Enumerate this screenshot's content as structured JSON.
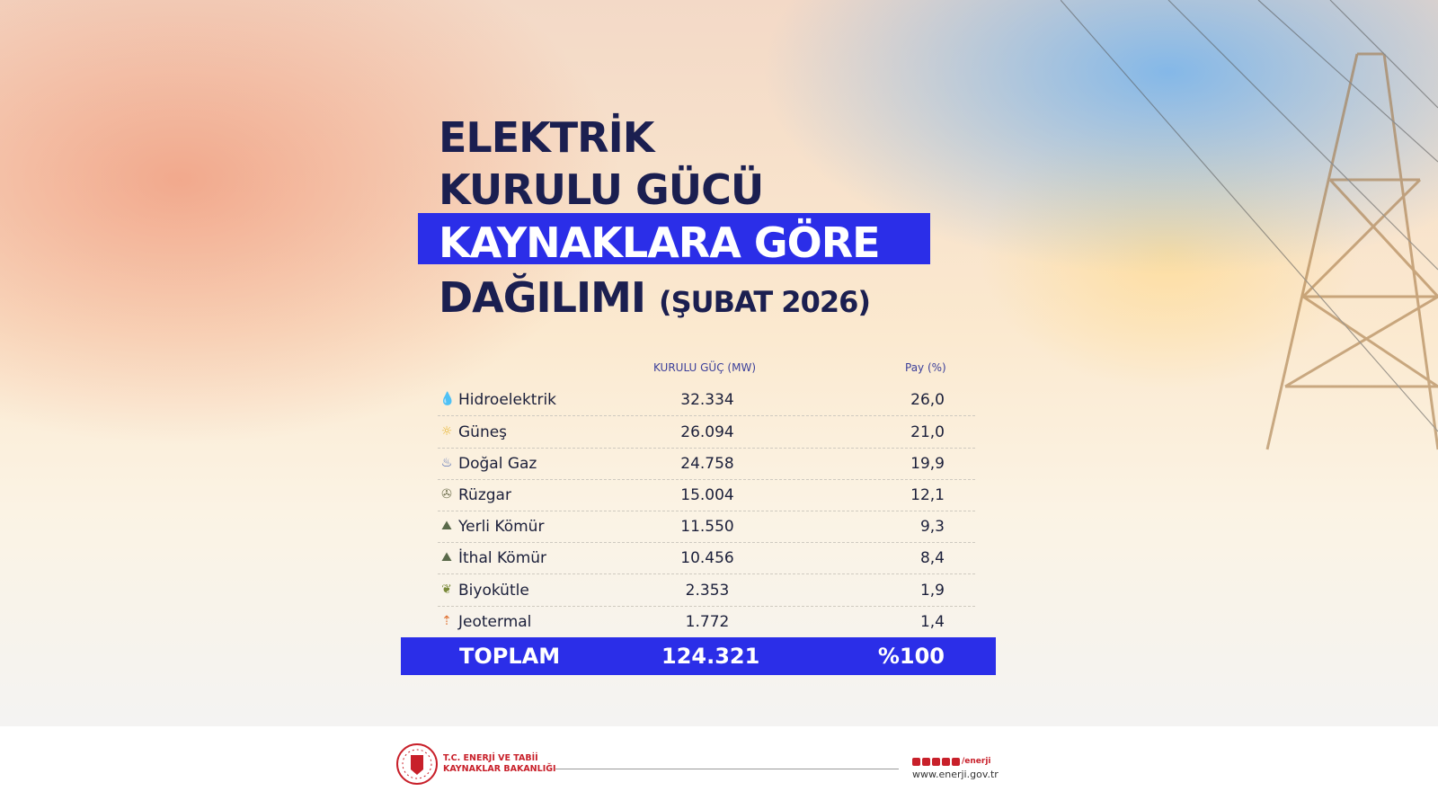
{
  "title": {
    "line1": "ELEKTRİK",
    "line2": "KURULU GÜCÜ",
    "line3": "KAYNAKLARA GÖRE",
    "line4": "DAĞILIMI",
    "period": "(ŞUBAT 2026)"
  },
  "colors": {
    "accent": "#2b2ee8",
    "title": "#1b1f50"
  },
  "table": {
    "headers": {
      "mw": "KURULU GÜÇ (MW)",
      "share": "Pay (%)"
    },
    "rows": [
      {
        "name": "Hidroelektrik",
        "mw": "32.334",
        "share": "26,0",
        "icon": "water-drop-icon",
        "color": "#3aa9c9"
      },
      {
        "name": "Güneş",
        "mw": "26.094",
        "share": "21,0",
        "icon": "sun-icon",
        "color": "#e8b530"
      },
      {
        "name": "Doğal Gaz",
        "mw": "24.758",
        "share": "19,9",
        "icon": "gas-flame-icon",
        "color": "#3d5bb0"
      },
      {
        "name": "Rüzgar",
        "mw": "15.004",
        "share": "12,1",
        "icon": "wind-turbine-icon",
        "color": "#7a7a5a"
      },
      {
        "name": "Yerli Kömür",
        "mw": "11.550",
        "share": "9,3",
        "icon": "coal-icon",
        "color": "#5a6a4a"
      },
      {
        "name": "İthal Kömür",
        "mw": "10.456",
        "share": "8,4",
        "icon": "coal-icon",
        "color": "#5a6a4a"
      },
      {
        "name": "Biyokütle",
        "mw": "2.353",
        "share": "1,9",
        "icon": "biomass-icon",
        "color": "#7a8a3a"
      },
      {
        "name": "Jeotermal",
        "mw": "1.772",
        "share": "1,4",
        "icon": "geothermal-icon",
        "color": "#e07030"
      }
    ],
    "total": {
      "label": "TOPLAM",
      "mw": "124.321",
      "share": "%100"
    }
  },
  "footer": {
    "ministry_line1": "T.C. ENERJİ VE TABİİ",
    "ministry_line2": "KAYNAKLAR BAKANLIĞI",
    "social_handle": "/enerji",
    "website": "www.enerji.gov.tr"
  }
}
